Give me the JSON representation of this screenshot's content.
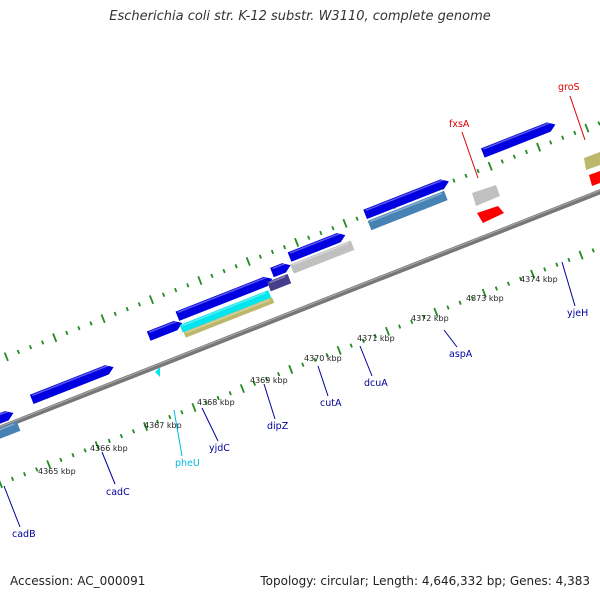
{
  "title": "Escherichia coli str. K-12 substr. W3110, complete genome",
  "footer": {
    "accession": "Accession: AC_000091",
    "summary": "Topology: circular; Length: 4,646,332 bp; Genes: 4,383"
  },
  "colors": {
    "backbone": "#888888",
    "forward_gene": "#0000e0",
    "reverse_gene": "#4682b4",
    "trna": "#00e5ee",
    "pseudo_gene": "#c0c0c0",
    "tan_gene": "#bdb76b",
    "red_gene": "#ff0000",
    "dark_gene": "#483d8b",
    "blue_label": "#000099",
    "red_label": "#dd0000",
    "cyan_label": "#00bbdd",
    "tick": "#228b22"
  },
  "ticks": [
    {
      "label": "4365 kbp"
    },
    {
      "label": "4366 kbp"
    },
    {
      "label": "4367 kbp"
    },
    {
      "label": "4368 kbp"
    },
    {
      "label": "4369 kbp"
    },
    {
      "label": "4370 kbp"
    },
    {
      "label": "4371 kbp"
    },
    {
      "label": "4372 kbp"
    },
    {
      "label": "4373 kbp"
    },
    {
      "label": "4374 kbp"
    }
  ],
  "gene_labels": [
    {
      "name": "cadB",
      "color_key": "blue_label"
    },
    {
      "name": "cadC",
      "color_key": "blue_label"
    },
    {
      "name": "pheU",
      "color_key": "cyan_label"
    },
    {
      "name": "yjdC",
      "color_key": "blue_label"
    },
    {
      "name": "dipZ",
      "color_key": "blue_label"
    },
    {
      "name": "cutA",
      "color_key": "blue_label"
    },
    {
      "name": "dcuA",
      "color_key": "blue_label"
    },
    {
      "name": "aspA",
      "color_key": "blue_label"
    },
    {
      "name": "yjeH",
      "color_key": "blue_label"
    },
    {
      "name": "fxsA",
      "color_key": "red_label"
    },
    {
      "name": "groS",
      "color_key": "red_label"
    }
  ]
}
